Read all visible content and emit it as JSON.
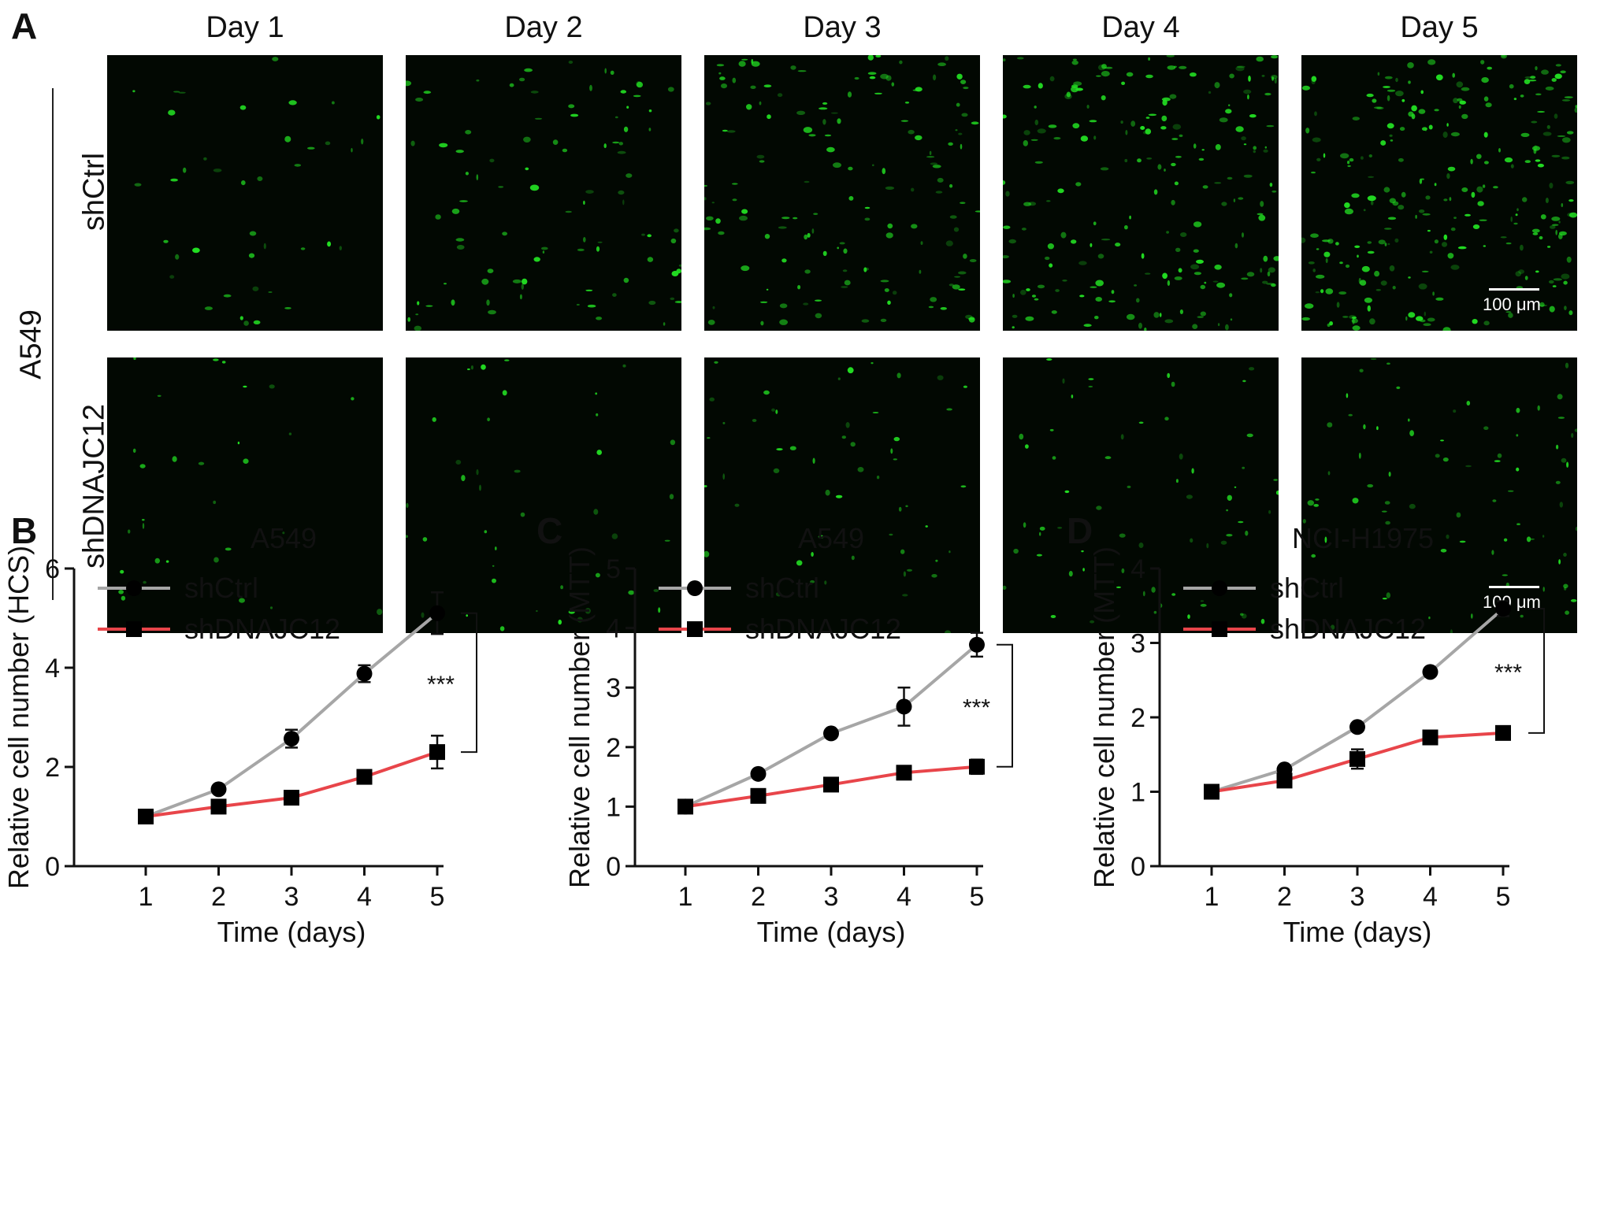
{
  "panelA": {
    "letter": "A",
    "cell_line": "A549",
    "days": [
      "Day 1",
      "Day 2",
      "Day 3",
      "Day 4",
      "Day 5"
    ],
    "conditions": [
      "shCtrl",
      "shDNAJC12"
    ],
    "scale_label": "100 μm",
    "fluorescence_color": "#22dd22",
    "background_color": "#020802"
  },
  "colors": {
    "shCtrl": "#a6a6a6",
    "shDNAJC12": "#e8454a",
    "marker": "#000000"
  },
  "chart_data": [
    {
      "letter": "B",
      "type": "line",
      "title": "A549",
      "xlabel": "Time (days)",
      "ylabel": "Relative cell number (HCS)",
      "x": [
        1,
        2,
        3,
        4,
        5
      ],
      "ylim": [
        0,
        6
      ],
      "yticks": [
        0,
        2,
        4,
        6
      ],
      "legend": "top-left",
      "series": [
        {
          "name": "shCtrl",
          "marker": "circle",
          "values": [
            1.0,
            1.55,
            2.57,
            3.88,
            5.1
          ],
          "err": [
            0.03,
            0.05,
            0.18,
            0.17,
            0.42
          ]
        },
        {
          "name": "shDNAJC12",
          "marker": "square",
          "values": [
            1.0,
            1.2,
            1.38,
            1.8,
            2.3
          ],
          "err": [
            0.03,
            0.06,
            0.07,
            0.06,
            0.33
          ]
        }
      ],
      "significance": "***"
    },
    {
      "letter": "C",
      "type": "line",
      "title": "A549",
      "xlabel": "Time (days)",
      "ylabel": "Relative cell number (MTT)",
      "x": [
        1,
        2,
        3,
        4,
        5
      ],
      "ylim": [
        0,
        5
      ],
      "yticks": [
        0,
        1,
        2,
        3,
        4,
        5
      ],
      "legend": "top-left",
      "series": [
        {
          "name": "shCtrl",
          "marker": "circle",
          "values": [
            1.0,
            1.55,
            2.23,
            2.68,
            3.72
          ],
          "err": [
            0.02,
            0.04,
            0.06,
            0.32,
            0.2
          ]
        },
        {
          "name": "shDNAJC12",
          "marker": "square",
          "values": [
            1.0,
            1.18,
            1.37,
            1.57,
            1.67
          ],
          "err": [
            0.02,
            0.11,
            0.05,
            0.05,
            0.12
          ]
        }
      ],
      "significance": "***"
    },
    {
      "letter": "D",
      "type": "line",
      "title": "NCI-H1975",
      "xlabel": "Time (days)",
      "ylabel": "Relative cell number (MTT)",
      "x": [
        1,
        2,
        3,
        4,
        5
      ],
      "ylim": [
        0,
        4
      ],
      "yticks": [
        0,
        1,
        2,
        3,
        4
      ],
      "legend": "top-left",
      "series": [
        {
          "name": "shCtrl",
          "marker": "circle",
          "values": [
            1.0,
            1.3,
            1.87,
            2.61,
            3.46
          ],
          "err": [
            0.02,
            0.04,
            0.03,
            0.03,
            0.1
          ]
        },
        {
          "name": "shDNAJC12",
          "marker": "square",
          "values": [
            1.0,
            1.15,
            1.44,
            1.73,
            1.79
          ],
          "err": [
            0.02,
            0.04,
            0.13,
            0.04,
            0.04
          ]
        }
      ],
      "significance": "***"
    }
  ]
}
